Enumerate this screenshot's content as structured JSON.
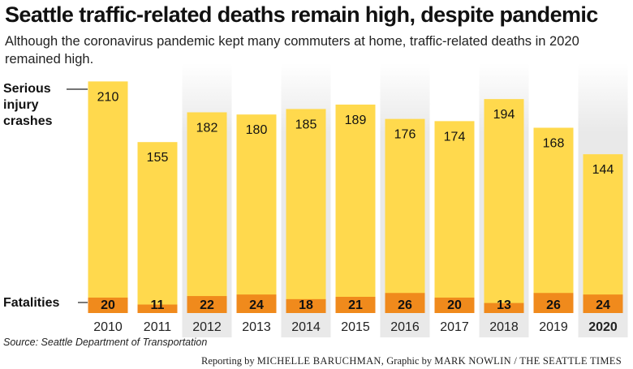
{
  "title": "Seattle traffic-related deaths remain high, despite pandemic",
  "subtitle": "Although the coronavirus pandemic kept many commuters at home, traffic-related deaths in 2020 remained high.",
  "source": "Source: Seattle Department of Transportation",
  "credit": {
    "reporting_prefix": "Reporting by",
    "reporter": "MICHELLE BARUCHMAN,",
    "graphic_prefix": "Graphic by",
    "graphic_author": "MARK NOWLIN / THE SEATTLE TIMES"
  },
  "colors": {
    "serious_injury": "#ffd94d",
    "fatalities": "#f08a1c",
    "column_shade": "#e9e9e9"
  },
  "chart_data": {
    "type": "bar",
    "categories": [
      "2010",
      "2011",
      "2012",
      "2013",
      "2014",
      "2015",
      "2016",
      "2017",
      "2018",
      "2019",
      "2020"
    ],
    "series": [
      {
        "name": "Serious injury crashes",
        "label_lines": [
          "Serious",
          "injury",
          "crashes"
        ],
        "values": [
          210,
          155,
          182,
          180,
          185,
          189,
          176,
          174,
          194,
          168,
          144
        ]
      },
      {
        "name": "Fatalities",
        "values": [
          20,
          11,
          22,
          24,
          18,
          21,
          26,
          20,
          13,
          26,
          24
        ]
      }
    ],
    "highlight_category": "2020",
    "shaded_columns": [
      "2012",
      "2014",
      "2016",
      "2018",
      "2020"
    ]
  }
}
